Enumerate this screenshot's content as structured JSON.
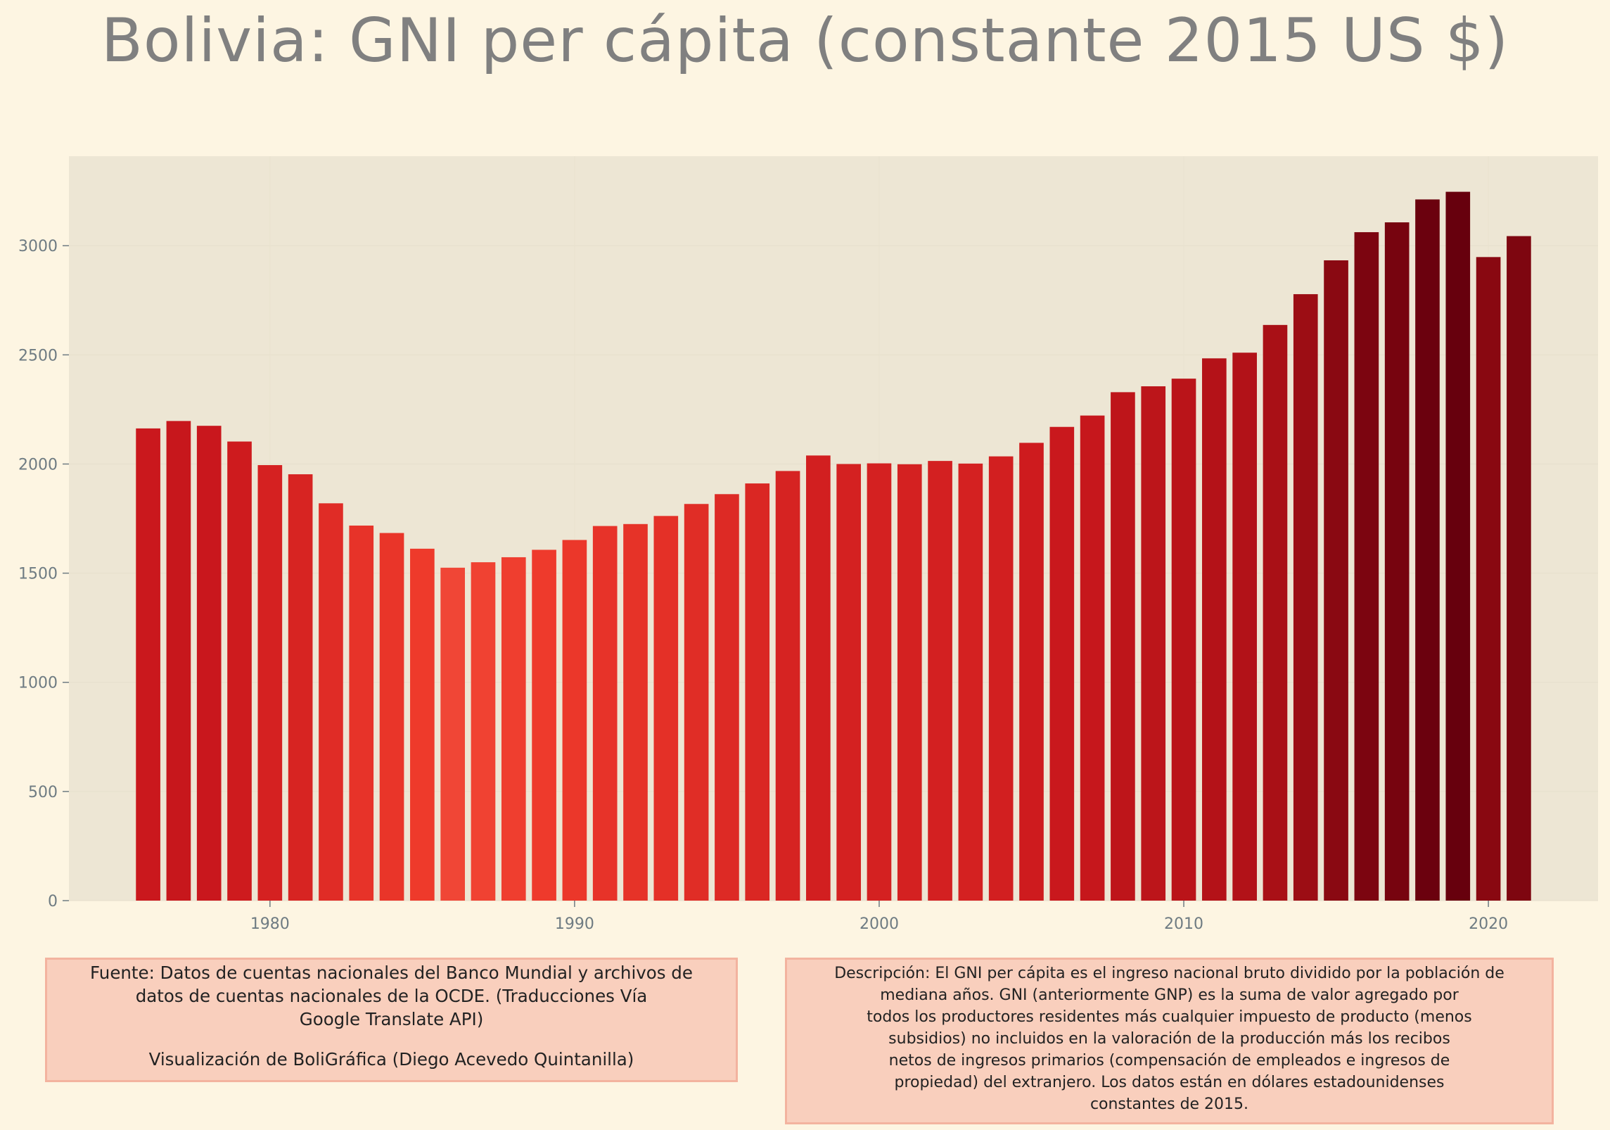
{
  "chart_data": {
    "type": "bar",
    "title": "Bolivia:  GNI per cápita (constante 2015 US $)",
    "xlabel": "",
    "ylabel": "",
    "x": [
      1976,
      1977,
      1978,
      1979,
      1980,
      1981,
      1982,
      1983,
      1984,
      1985,
      1986,
      1987,
      1988,
      1989,
      1990,
      1991,
      1992,
      1993,
      1994,
      1995,
      1996,
      1997,
      1998,
      1999,
      2000,
      2001,
      2002,
      2003,
      2004,
      2005,
      2006,
      2007,
      2008,
      2009,
      2010,
      2011,
      2012,
      2013,
      2014,
      2015,
      2016,
      2017,
      2018,
      2019,
      2020,
      2021
    ],
    "values": [
      2163,
      2197,
      2175,
      2103,
      1995,
      1953,
      1820,
      1718,
      1684,
      1612,
      1525,
      1550,
      1573,
      1607,
      1652,
      1716,
      1725,
      1762,
      1817,
      1862,
      1911,
      1968,
      2039,
      2000,
      2003,
      1999,
      2014,
      2002,
      2035,
      2097,
      2170,
      2222,
      2329,
      2356,
      2391,
      2484,
      2510,
      2637,
      2778,
      2933,
      3062,
      3107,
      3212,
      3247,
      2948,
      3044
    ],
    "xticks": [
      "1980",
      "1990",
      "2000",
      "2010",
      "2020"
    ],
    "yticks": [
      "0",
      "500",
      "1000",
      "1500",
      "2000",
      "2500",
      "3000"
    ],
    "xlim": [
      1973.4,
      2023.6
    ],
    "ylim": [
      0,
      3410
    ],
    "grid": true,
    "legend": "none",
    "color_scale": [
      "#fb9a7f",
      "#ef3b2c",
      "#cb181d",
      "#a50f15",
      "#67000d"
    ],
    "plot_background": "#ede6d4"
  },
  "notes": {
    "source_lines": [
      "Fuente: Datos de cuentas nacionales del Banco Mundial y archivos de",
      "datos de cuentas nacionales de la OCDE. (Traducciones Vía",
      "Google Translate API)"
    ],
    "credit": "Visualización de BoliGráfica (Diego Acevedo Quintanilla)",
    "description_lines": [
      "Descripción: El GNI per cápita es el ingreso nacional bruto dividido por la población de",
      "mediana años. GNI (anteriormente GNP) es la suma de valor agregado por",
      "todos los productores residentes más cualquier impuesto de producto (menos",
      "subsidios) no incluidos en la valoración de la producción más los recibos",
      "netos de ingresos primarios (compensación de empleados e ingresos de",
      "propiedad) del extranjero. Los datos están en dólares estadounidenses",
      "constantes de 2015."
    ]
  }
}
